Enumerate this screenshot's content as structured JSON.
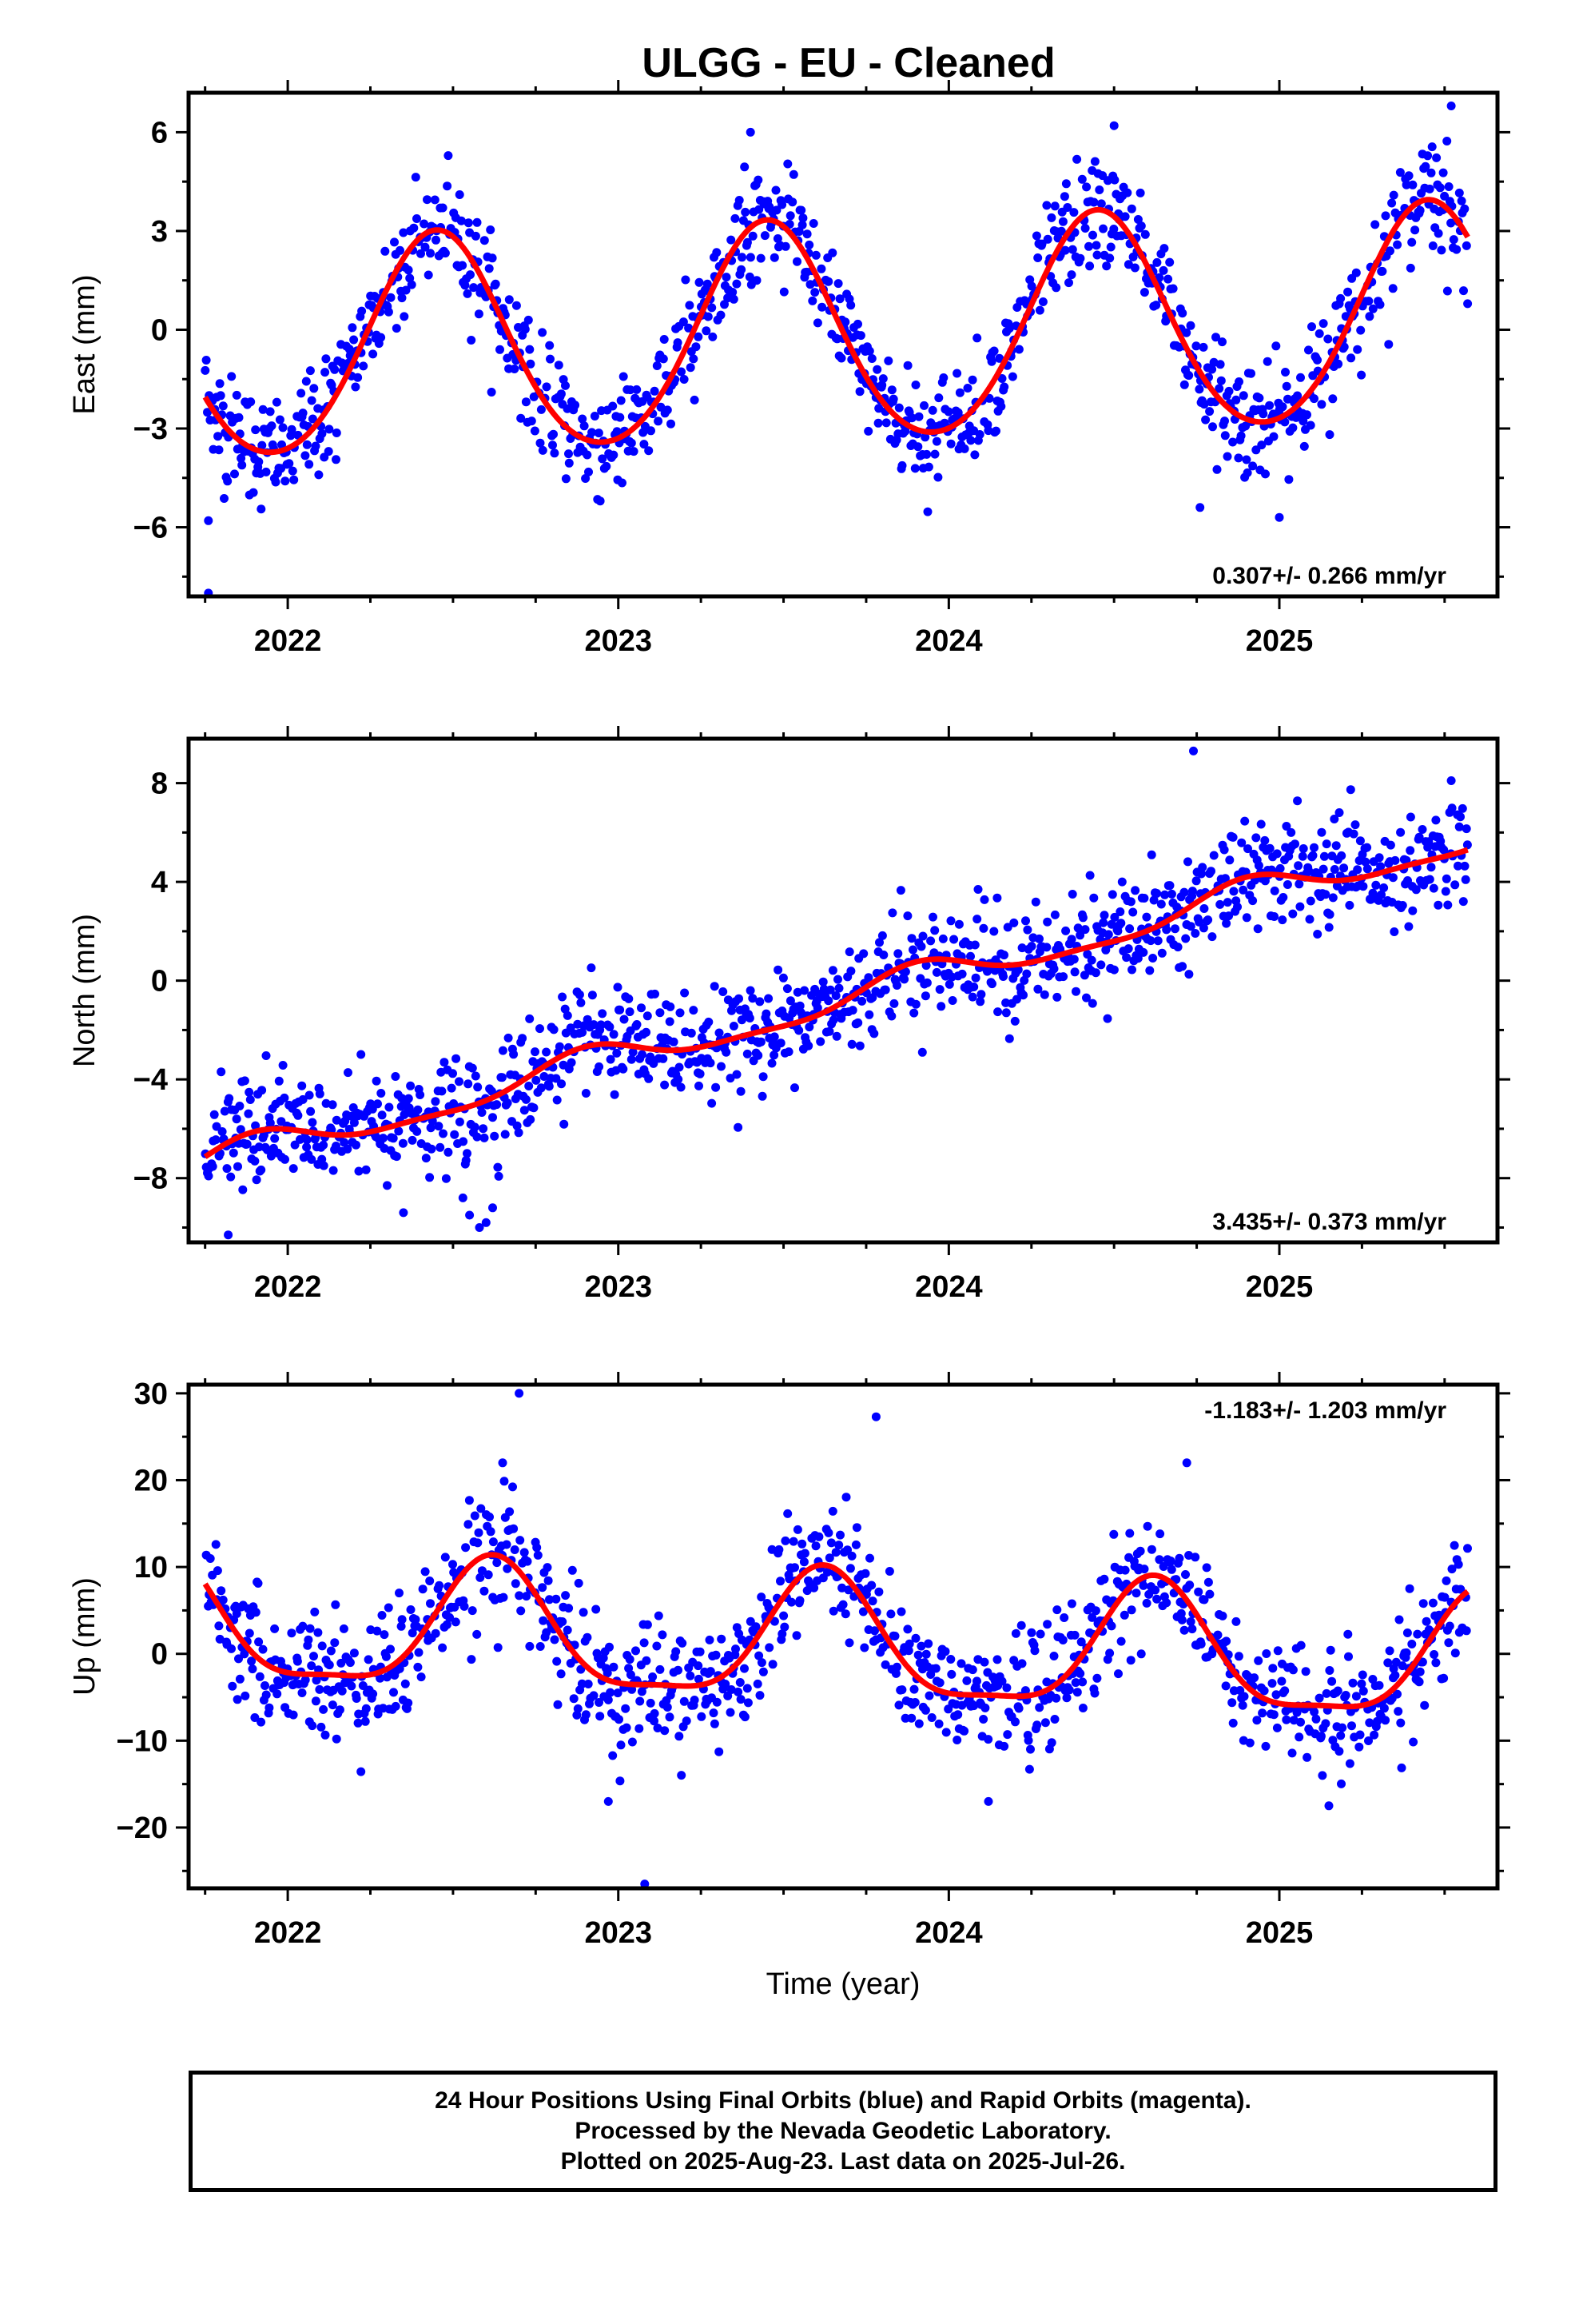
{
  "title": "ULGG  - EU - Cleaned",
  "colors": {
    "points": "#0000ff",
    "fit": "#ff0000",
    "axes": "#000000"
  },
  "chart_data": [
    {
      "type": "scatter",
      "id": "east",
      "ylabel": "East (mm)",
      "xlabel": "",
      "xlim": [
        2021.7,
        2025.66
      ],
      "ylim": [
        -8.1,
        7.2
      ],
      "xticks": [
        2022,
        2023,
        2024,
        2025
      ],
      "xtick_labels": [
        "2022",
        "2023",
        "2024",
        "2025"
      ],
      "yticks": [
        -6,
        -3,
        0,
        3,
        6
      ],
      "ytick_labels": [
        "−6",
        "−3",
        "0",
        "3",
        "6"
      ],
      "rate_text": "0.307+/- 0.266 mm/yr",
      "rate_position": "bottom-right",
      "series": [
        {
          "style": "points",
          "x_start": 2021.75,
          "x_end": 2025.57,
          "offset": -0.2,
          "rate": 0.307,
          "amp": 3.3,
          "phase_peak": 0.45,
          "amp2": 0.3,
          "noise": 0.85,
          "outliers": [
            [
              2021.76,
              -8.0
            ],
            [
              2021.76,
              -5.8
            ],
            [
              2024.76,
              -5.4
            ],
            [
              2025.0,
              -5.7
            ],
            [
              2024.5,
              6.2
            ],
            [
              2025.52,
              6.8
            ],
            [
              2023.4,
              6.0
            ]
          ]
        },
        {
          "style": "fit-line",
          "x_start": 2021.75,
          "x_end": 2025.57,
          "offset": -0.2,
          "rate": 0.307,
          "amp": 3.3,
          "phase_peak": 0.45,
          "amp2": 0.3
        }
      ]
    },
    {
      "type": "scatter",
      "id": "north",
      "ylabel": "North (mm)",
      "xlabel": "",
      "xlim": [
        2021.7,
        2025.66
      ],
      "ylim": [
        -10.6,
        9.8
      ],
      "xticks": [
        2022,
        2023,
        2024,
        2025
      ],
      "xtick_labels": [
        "2022",
        "2023",
        "2024",
        "2025"
      ],
      "yticks": [
        -8,
        -4,
        0,
        4,
        8
      ],
      "ytick_labels": [
        "−8",
        "−4",
        "0",
        "4",
        "8"
      ],
      "rate_text": "3.435+/- 0.373 mm/yr",
      "rate_position": "bottom-right",
      "series": [
        {
          "style": "points",
          "x_start": 2021.75,
          "x_end": 2025.57,
          "offset": -0.9,
          "rate": 3.435,
          "amp": 0.6,
          "phase_peak": 0.9,
          "amp2": 0.2,
          "noise": 1.1,
          "outliers": [
            [
              2022.55,
              -9.5
            ],
            [
              2022.58,
              -10.0
            ],
            [
              2022.6,
              -9.8
            ],
            [
              2022.53,
              -8.8
            ],
            [
              2022.62,
              -9.2
            ],
            [
              2024.74,
              9.3
            ],
            [
              2025.52,
              8.1
            ],
            [
              2021.82,
              -10.3
            ],
            [
              2022.35,
              -9.4
            ]
          ]
        },
        {
          "style": "fit-line",
          "x_start": 2021.75,
          "x_end": 2025.57,
          "offset": -0.9,
          "rate": 3.435,
          "amp": 0.6,
          "phase_peak": 0.9,
          "amp2": 0.2
        }
      ]
    },
    {
      "type": "scatter",
      "id": "up",
      "ylabel": "Up (mm)",
      "xlabel": "Time (year)",
      "xlim": [
        2021.7,
        2025.66
      ],
      "ylim": [
        -27.0,
        31.0
      ],
      "xticks": [
        2022,
        2023,
        2024,
        2025
      ],
      "xtick_labels": [
        "2022",
        "2023",
        "2024",
        "2025"
      ],
      "yticks": [
        -20,
        -10,
        0,
        10,
        20,
        30
      ],
      "ytick_labels": [
        "−20",
        "−10",
        "0",
        "10",
        "20",
        "30"
      ],
      "rate_text": "-1.183+/- 1.203 mm/yr",
      "rate_position": "top-right",
      "series": [
        {
          "style": "points",
          "x_start": 2021.75,
          "x_end": 2025.57,
          "offset": 1.0,
          "rate": -1.183,
          "amp": 7.2,
          "phase_peak": 0.62,
          "amp2": 2.0,
          "noise": 3.6,
          "outliers": [
            [
              2022.7,
              30.0
            ],
            [
              2023.78,
              27.3
            ],
            [
              2023.08,
              -26.5
            ],
            [
              2022.97,
              -17.0
            ],
            [
              2025.15,
              -17.5
            ],
            [
              2024.12,
              -17.0
            ],
            [
              2022.65,
              22.0
            ],
            [
              2024.72,
              22.0
            ]
          ]
        },
        {
          "style": "fit-line",
          "x_start": 2021.75,
          "x_end": 2025.57,
          "offset": 1.0,
          "rate": -1.183,
          "amp": 7.2,
          "phase_peak": 0.62,
          "amp2": 2.0
        }
      ]
    }
  ],
  "footer": {
    "line1": "24 Hour Positions Using Final Orbits (blue) and Rapid Orbits (magenta).",
    "line2": "Processed by the Nevada Geodetic Laboratory.",
    "line3": "Plotted on 2025-Aug-23. Last data on 2025-Jul-26."
  }
}
